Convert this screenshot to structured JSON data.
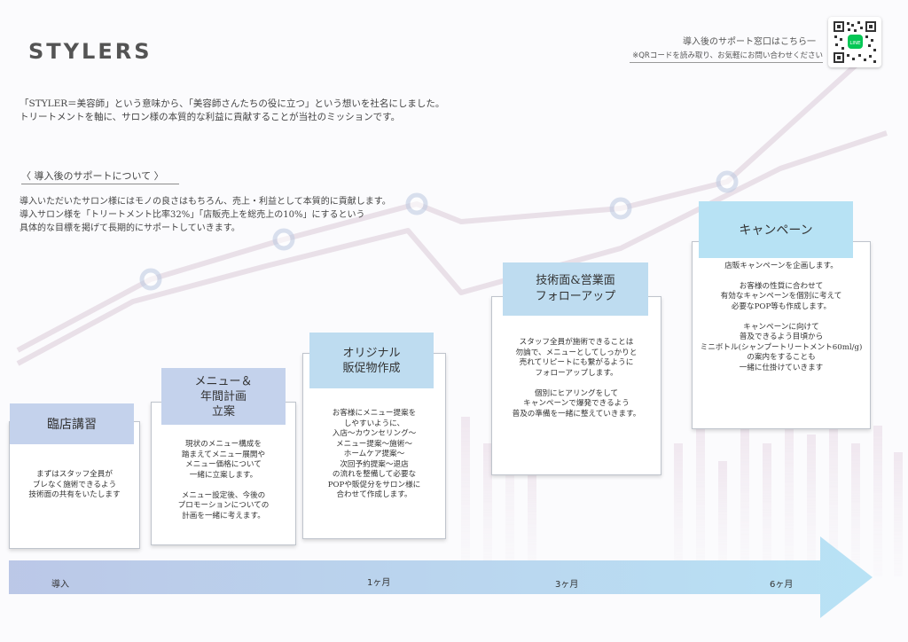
{
  "brand": {
    "logo_text": "STYLERS"
  },
  "intro": {
    "text": "「STYLER＝美容師」という意味から、「美容師さんたちの役に立つ」という想いを社名にしました。\nトリートメントを軸に、サロン様の本質的な利益に貢献することが当社のミッションです。"
  },
  "support_section": {
    "heading": "〈 導入後のサポートについて 〉",
    "text": "導入いただいたサロン様にはモノの良さはもちろん、売上・利益として本質的に貢献します。\n導入サロン様を「トリートメント比率32%」「店販売上を総売上の10%」にするという\n具体的な目標を掲げて長期的にサポートしていきます。"
  },
  "contact": {
    "title": "導入後のサポート窓口はこちら一",
    "note": "※QRコードを読み取り、お気軽にお問い合わせください",
    "qr_icon": "qr-code-icon",
    "line_icon": "line-app-icon",
    "line_color": "#06c755"
  },
  "steps": [
    {
      "label": "臨店講習",
      "body": "まずはスタッフ全員が\nブレなく施術できるよう\n技術面の共有をいたします"
    },
    {
      "label": "メニュー＆\n年間計画\n立案",
      "body": "現状のメニュー構成を\n踏まえてメニュー展開や\nメニュー価格について\n一緒に立案します。\n\nメニュー設定後、今後の\nプロモーションについての\n計画を一緒に考えます。"
    },
    {
      "label": "オリジナル\n販促物作成",
      "body": "お客様にメニュー提案を\nしやすいように、\n入店〜カウンセリング〜\nメニュー提案〜施術〜\nホームケア提案〜\n次回予約提案〜退店\nの流れを整備して必要な\nPOPや販促分をサロン様に\n合わせて作成します。"
    },
    {
      "label": "技術面&営業面\nフォローアップ",
      "body": "スタッフ全員が施術できることは\n勿論で、メニューとしてしっかりと\n売れてリピートにも繋がるように\nフォローアップします。\n\n個別にヒアリングをして\nキャンペーンで爆発できるよう\n普及の準備を一緒に整えていきます。"
    },
    {
      "label": "キャンペーン",
      "body": "年に2回、11月・12月と5月・6月に\n店販キャンペーンを企画します。\n\nお客様の性質に合わせて\n有効なキャンペーンを個別に考えて\n必要なPOP等も作成します。\n\nキャンペーンに向けて\n普及できるよう目頃から\nミニボトル(シャンプートリートメント60ml/g)\nの案内をすることも\n一緒に仕掛けていきます"
    }
  ],
  "timeline": {
    "labels": [
      "導入",
      "1ヶ月",
      "3ヶ月",
      "6ヶ月"
    ],
    "arrow_icon": "timeline-arrow-icon",
    "colors": {
      "start": "#b8c5e6",
      "end": "#b5e1f5"
    }
  },
  "background": {
    "decoration_icon": "growth-chart-background-icon",
    "line_color": "#c9b0c4"
  }
}
